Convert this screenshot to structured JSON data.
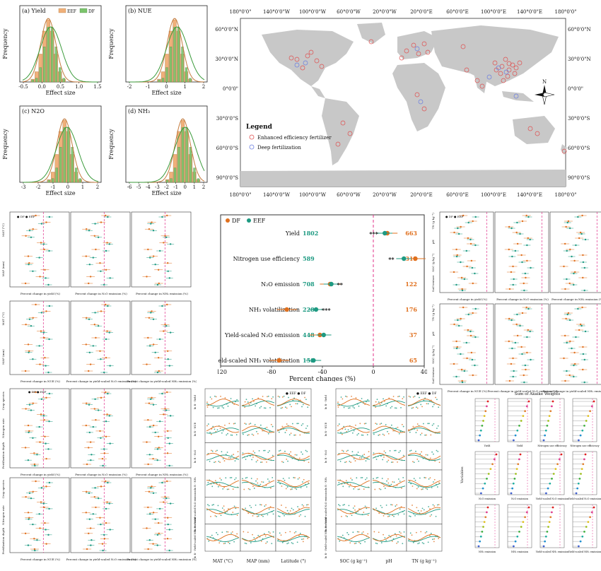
{
  "histograms": {
    "panels": [
      {
        "id": "a",
        "title": "(a) Yield",
        "xlabel": "Effect size",
        "ylabel": "Frequency",
        "xticks": [
          "-0.5",
          "0.0",
          "0.5",
          "1.0",
          "1.5"
        ],
        "legend": [
          "EEF",
          "DF"
        ]
      },
      {
        "id": "b",
        "title": "(b) NUE",
        "xlabel": "Effect size",
        "ylabel": "Frequency",
        "xticks": [
          "-2",
          "-1",
          "0",
          "1",
          "2"
        ]
      },
      {
        "id": "c",
        "title": "(c) N2O",
        "xlabel": "Effect size",
        "ylabel": "Frequency",
        "xticks": [
          "-3",
          "-2",
          "-1",
          "0",
          "1",
          "2"
        ]
      },
      {
        "id": "d",
        "title": "(d) NH₃",
        "xlabel": "Effect size",
        "ylabel": "Frequency",
        "xticks": [
          "-6",
          "-5",
          "-4",
          "-3",
          "-2",
          "-1",
          "0",
          "1",
          "2"
        ]
      }
    ],
    "colors": {
      "EEF": "#f0b07a",
      "DF": "#7cc46c",
      "EEF_curve": "#c47a3c",
      "DF_curve": "#3a9a3a"
    }
  },
  "map": {
    "top_ticks": [
      "180°0'0\"",
      "140°0'0\"W",
      "100°0'0\"W",
      "60°0'0\"W",
      "20°0'0\"W",
      "20°0'0\"E",
      "60°0'0\"E",
      "100°0'0\"E",
      "140°0'0\"E",
      "180°0'0\""
    ],
    "bottom_ticks": [
      "180°0'0\"",
      "140°0'0\"W",
      "100°0'0\"W",
      "60°0'0\"W",
      "20°0'0\"W",
      "20°0'0\"E",
      "60°0'0\"E",
      "100°0'0\"E",
      "140°0'0\"E",
      "180°0'0\""
    ],
    "left_ticks": [
      "60°0'0\"N",
      "30°0'0\"N",
      "0°0'0\"",
      "30°0'0\"S",
      "60°0'0\"S",
      "90°0'0\"S"
    ],
    "right_ticks": [
      "60°0'0\"N",
      "30°0'0\"N",
      "0°0'0\"",
      "30°0'0\"S",
      "60°0'0\"S",
      "90°0'0\"S"
    ],
    "legend_title": "Legend",
    "legend_items": [
      {
        "label": "Enhanced efficiency fertilizer",
        "color": "#e05050"
      },
      {
        "label": "Deep fertilization",
        "color": "#6a7de0"
      }
    ],
    "north": "N"
  },
  "forest_main": {
    "legend": [
      {
        "label": "DF",
        "color": "#e0701e"
      },
      {
        "label": "EEF",
        "color": "#1e9a82"
      }
    ],
    "xlabel": "Percent changes (%)",
    "xticks": [
      "-120",
      "-80",
      "-40",
      "0",
      "40"
    ],
    "chart_data": {
      "type": "forest",
      "categories": [
        "Yield",
        "Nitrogen use efficiency",
        "N₂O emission",
        "NH₃ volatilization",
        "Yield-scaled N₂O emission",
        "eld-scaled NH₃ volatilization"
      ],
      "series": [
        {
          "name": "DF",
          "values": [
            11,
            33,
            -34,
            -68,
            -42,
            -74
          ],
          "n": [
            "1802",
            "589",
            "708",
            "228",
            "448",
            "158"
          ]
        },
        {
          "name": "EEF",
          "values": [
            9,
            24,
            -33,
            -45,
            -39,
            -47
          ],
          "n": [
            "663",
            "315",
            "122",
            "176",
            "37",
            "65"
          ]
        }
      ],
      "significance": [
        "***",
        "**",
        "**",
        "***",
        "",
        ""
      ],
      "xlim": [
        -120,
        40
      ]
    }
  },
  "small_panels": {
    "left_top_xlabels": [
      "Percent change in yield (%)",
      "Percent change in N₂O emission (%)",
      "Percent change in NH₃ emission (%)"
    ],
    "left_mid_xlabels": [
      "Percent change in NUE (%)",
      "Percent change in yield-scaled N₂O emission (%)",
      "Percent change in yield-scaled NH₃ emission (%)"
    ],
    "left_top_groups": [
      "MAT (°C)",
      "MAP (mm)"
    ],
    "crop_groups": [
      "Crop species",
      "Nitrogen rate",
      "Fertilization depth"
    ],
    "right_groups": [
      "TN (g kg⁻¹)",
      "pH",
      "SOC (g kg⁻¹)",
      "Soil texture"
    ],
    "legend": [
      "DF",
      "EEF"
    ]
  },
  "scatter_grid_1": {
    "xlabels": [
      "MAT (°C)",
      "MAP (mm)",
      "Latitude (°)"
    ],
    "ylabels": [
      "ln R - Yield",
      "ln R - NUE",
      "ln R - N₂O",
      "ln R - NH₃",
      "ln R - Yield-scaled N₂O emission",
      "ln R - Yield-scaled NH₃ emission"
    ],
    "legend": [
      "EEF",
      "DF"
    ]
  },
  "scatter_grid_2": {
    "xlabels": [
      "SOC (g kg⁻¹)",
      "pH",
      "TN (g kg⁻¹)"
    ],
    "ylabels": [
      "ln R - Yield",
      "ln R - NUE",
      "ln R - N₂O",
      "ln R - NH₃",
      "ln R - Yield-scaled N₂O emission",
      "ln R - Yield-scaled NH₃ emission"
    ],
    "legend": [
      "EEF",
      "DF"
    ]
  },
  "akaike": {
    "title": "Sum of Akaike Weights",
    "ylabel": "Variables",
    "panel_labels": [
      "Yield",
      "Yield",
      "Nitrogen use efficiency",
      "Nitrogen use efficiency",
      "N₂O emission",
      "N₂O emission",
      "Yield-scaled N₂O emission",
      "Yield-scaled N₂O emission",
      "NH₃ emission",
      "NH₃ emission",
      "Yield-scaled NH₃ emission",
      "Yield-scaled NH₃ emission"
    ]
  }
}
